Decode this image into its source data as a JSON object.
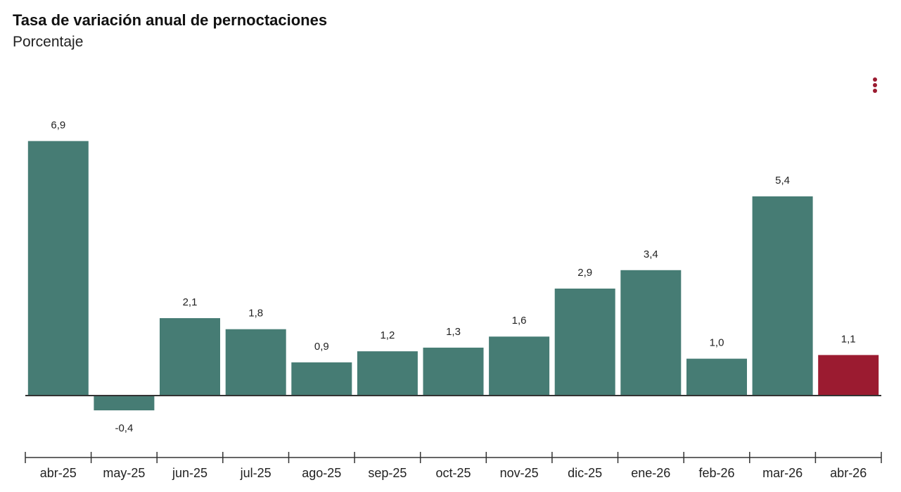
{
  "chart_data": {
    "type": "bar",
    "title": "Tasa de variación anual de pernoctaciones",
    "subtitle": "Porcentaje",
    "categories": [
      "abr-25",
      "may-25",
      "jun-25",
      "jul-25",
      "ago-25",
      "sep-25",
      "oct-25",
      "nov-25",
      "dic-25",
      "ene-26",
      "feb-26",
      "mar-26",
      "abr-26"
    ],
    "values": [
      6.9,
      -0.4,
      2.1,
      1.8,
      0.9,
      1.2,
      1.3,
      1.6,
      2.9,
      3.4,
      1.0,
      5.4,
      1.1
    ],
    "value_labels": [
      "6,9",
      "-0,4",
      "2,1",
      "1,8",
      "0,9",
      "1,2",
      "1,3",
      "1,6",
      "2,9",
      "3,4",
      "1,0",
      "5,4",
      "1,1"
    ],
    "highlight_index": 12,
    "colors": {
      "bar": "#467c74",
      "highlight": "#9b1b30",
      "axis": "#333333",
      "text": "#222222"
    },
    "grid": false,
    "legend": "none"
  },
  "menu": {
    "icon": "more-vertical-icon"
  }
}
